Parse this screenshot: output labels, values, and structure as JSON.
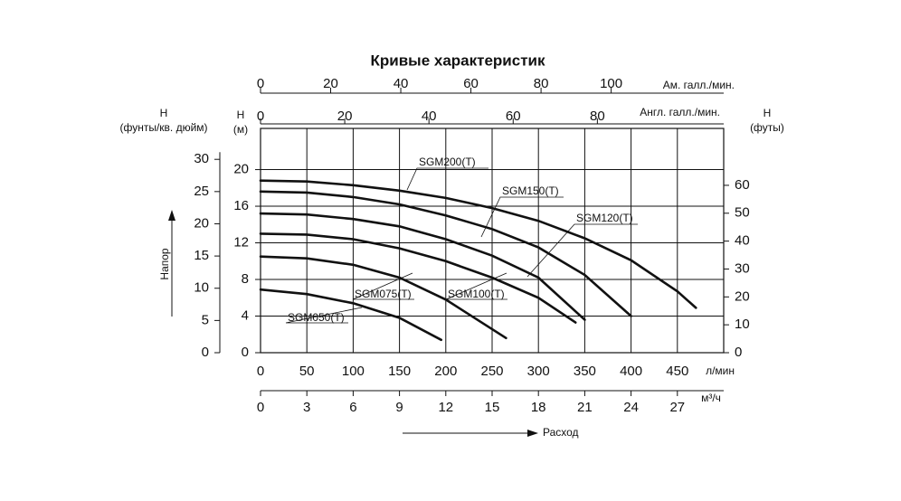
{
  "chart_data": {
    "type": "line",
    "title": "Кривые характеристик",
    "x_label": "л/мин",
    "y_label": [
      "H",
      "(м)"
    ],
    "xlim": [
      0,
      500
    ],
    "xticks": [
      0,
      50,
      100,
      150,
      200,
      250,
      300,
      350,
      400,
      450
    ],
    "ylim": [
      0,
      24.5
    ],
    "yticks": [
      0,
      4,
      8,
      12,
      16,
      20
    ],
    "grid": true,
    "secondary_axes": [
      {
        "label": [
          "Ам. галл./мин."
        ],
        "position": "top",
        "lim": [
          0,
          132.09
        ],
        "ticks": [
          0,
          20,
          40,
          60,
          80,
          100
        ]
      },
      {
        "label": [
          "Англ. галл./мин."
        ],
        "position": "top",
        "lim": [
          0,
          110
        ],
        "ticks": [
          0,
          20,
          40,
          60,
          80
        ]
      },
      {
        "label": [
          "м³/ч"
        ],
        "position": "bottom",
        "lim": [
          0,
          30
        ],
        "ticks": [
          0,
          3,
          6,
          9,
          12,
          15,
          18,
          21,
          24,
          27
        ]
      },
      {
        "label": [
          "H",
          "(фунты/кв. дюйм)"
        ],
        "position": "left",
        "lim": [
          0,
          34.8
        ],
        "ticks": [
          0,
          5,
          10,
          15,
          20,
          25,
          30
        ]
      },
      {
        "label": [
          "H",
          "(футы)"
        ],
        "position": "right",
        "lim": [
          0,
          80.4
        ],
        "ticks": [
          0,
          10,
          20,
          30,
          40,
          50,
          60
        ]
      }
    ],
    "head_label": "Напор",
    "flow_label": "Расход",
    "series": [
      {
        "name": "SGM050(T)",
        "color": "#111111",
        "x": [
          0,
          50,
          100,
          150,
          195
        ],
        "values": [
          6.9,
          6.4,
          5.4,
          3.8,
          1.4
        ]
      },
      {
        "name": "SGM075(T)",
        "color": "#111111",
        "x": [
          0,
          50,
          100,
          150,
          200,
          265
        ],
        "values": [
          10.5,
          10.3,
          9.6,
          8.2,
          5.8,
          1.6
        ]
      },
      {
        "name": "SGM100(T)",
        "color": "#111111",
        "x": [
          0,
          50,
          100,
          150,
          200,
          250,
          300,
          340
        ],
        "values": [
          13.0,
          12.9,
          12.4,
          11.4,
          10.0,
          8.2,
          6.0,
          3.3
        ]
      },
      {
        "name": "SGM120(T)",
        "color": "#111111",
        "x": [
          0,
          50,
          100,
          150,
          200,
          250,
          300,
          350
        ],
        "values": [
          15.2,
          15.1,
          14.6,
          13.8,
          12.4,
          10.6,
          8.2,
          3.6
        ]
      },
      {
        "name": "SGM150(T)",
        "color": "#111111",
        "x": [
          0,
          50,
          100,
          150,
          200,
          250,
          300,
          350,
          400
        ],
        "values": [
          17.6,
          17.5,
          17.0,
          16.2,
          15.0,
          13.5,
          11.5,
          8.5,
          4.0
        ]
      },
      {
        "name": "SGM200(T)",
        "color": "#111111",
        "x": [
          0,
          50,
          100,
          150,
          200,
          250,
          300,
          350,
          400,
          450,
          470
        ],
        "values": [
          18.8,
          18.7,
          18.3,
          17.7,
          16.9,
          15.8,
          14.4,
          12.5,
          10.1,
          6.7,
          4.9
        ]
      }
    ]
  }
}
